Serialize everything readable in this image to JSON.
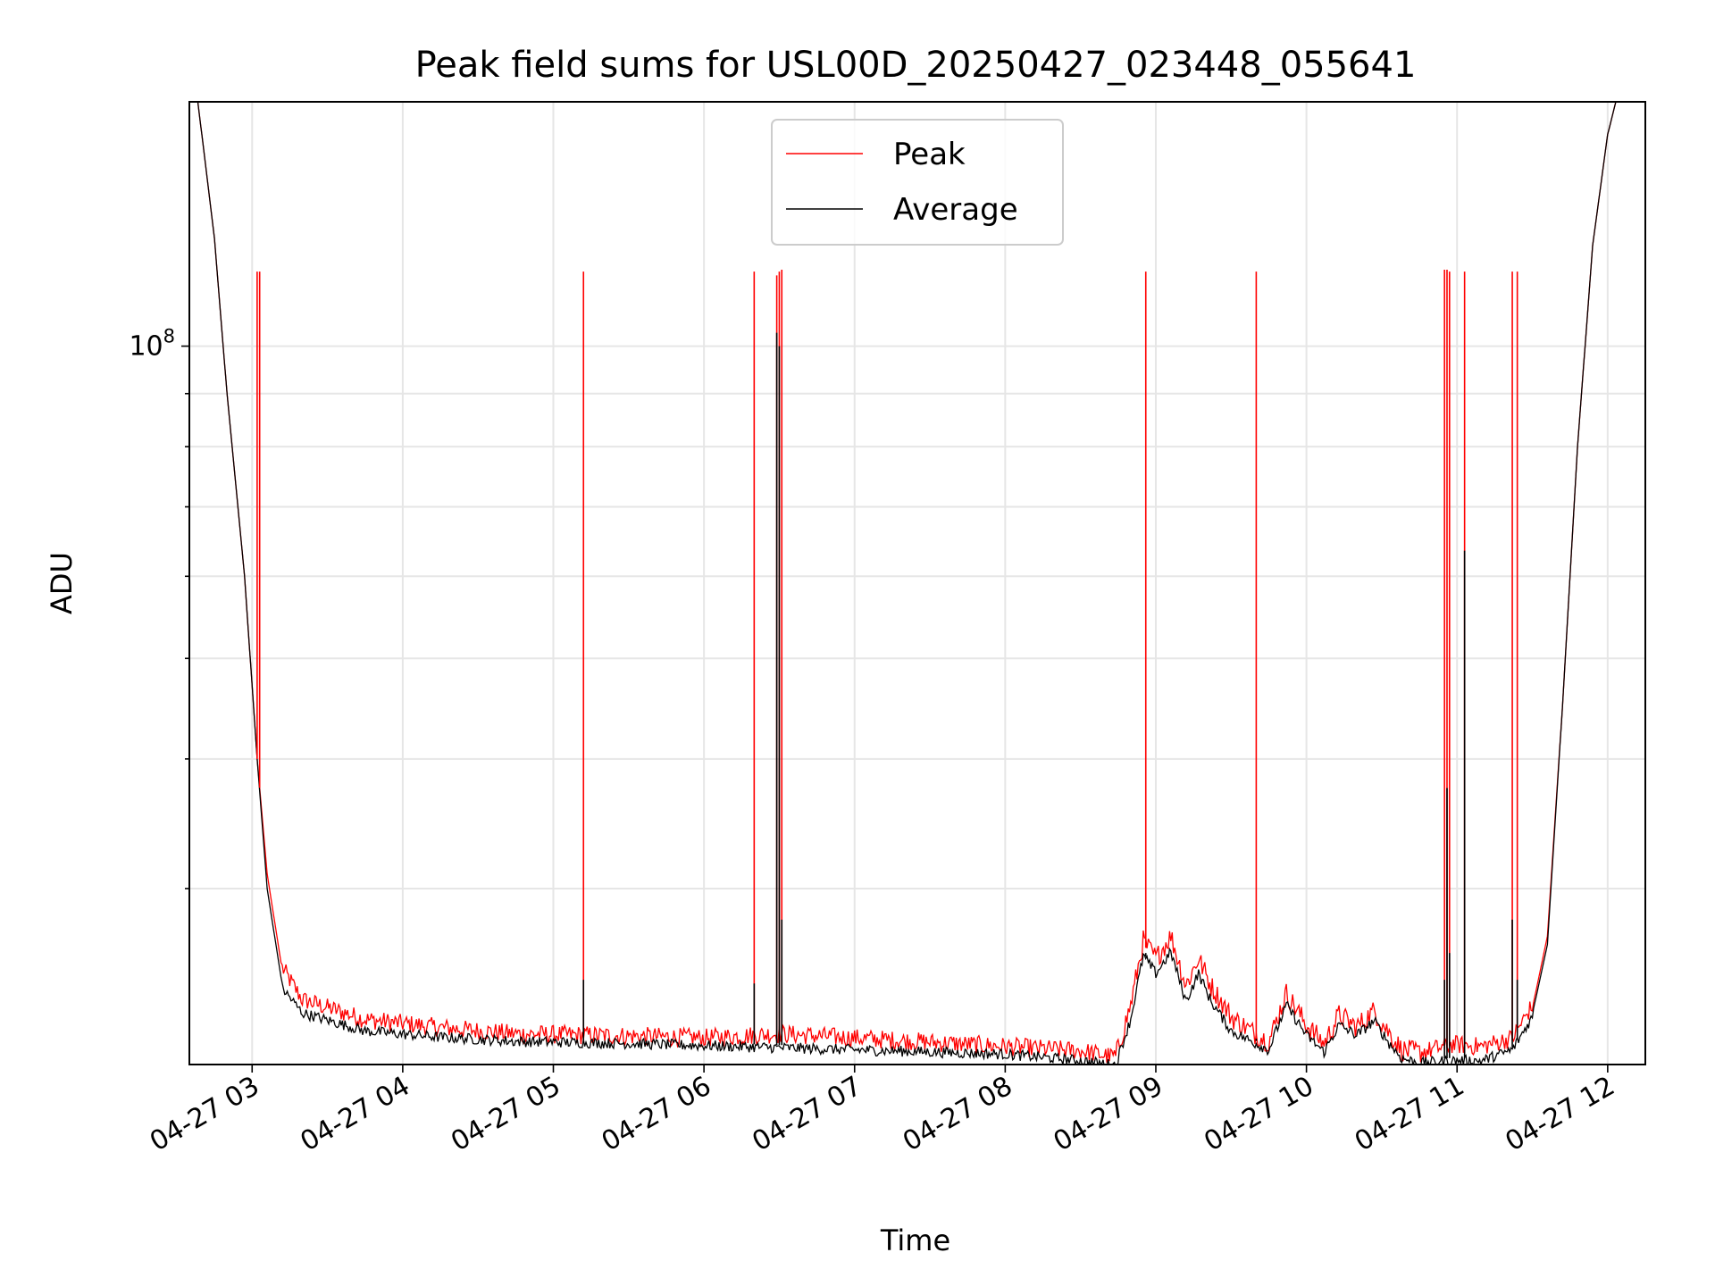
{
  "chart_data": {
    "type": "line",
    "title": "Peak field sums for USL00D_20250427_023448_055641",
    "xlabel": "Time",
    "ylabel": "ADU",
    "y_scale": "log",
    "y_major_tick_labels": [
      {
        "value": 100000000,
        "base": "10",
        "exp": "8"
      }
    ],
    "x_ticks": [
      {
        "t": "2025-04-27T03:00",
        "label": "04-27 03"
      },
      {
        "t": "2025-04-27T04:00",
        "label": "04-27 04"
      },
      {
        "t": "2025-04-27T05:00",
        "label": "04-27 05"
      },
      {
        "t": "2025-04-27T06:00",
        "label": "04-27 06"
      },
      {
        "t": "2025-04-27T07:00",
        "label": "04-27 07"
      },
      {
        "t": "2025-04-27T08:00",
        "label": "04-27 08"
      },
      {
        "t": "2025-04-27T09:00",
        "label": "04-27 09"
      },
      {
        "t": "2025-04-27T10:00",
        "label": "04-27 10"
      },
      {
        "t": "2025-04-27T11:00",
        "label": "04-27 11"
      },
      {
        "t": "2025-04-27T12:00",
        "label": "04-27 12"
      }
    ],
    "xlim": [
      "2025-04-27T02:35",
      "2025-04-27T12:15"
    ],
    "ylim": [
      20300000,
      172000000
    ],
    "grid": true,
    "legend_position": "upper center",
    "series": [
      {
        "name": "Peak",
        "color": "#ff0000",
        "points": [
          [
            "2025-04-27T02:38",
            175000000
          ],
          [
            "2025-04-27T02:45",
            127000000
          ],
          [
            "2025-04-27T02:50",
            90000000
          ],
          [
            "2025-04-27T02:57",
            60000000
          ],
          [
            "2025-04-27T03:02",
            40000000
          ],
          [
            "2025-04-27T03:06",
            31000000
          ],
          [
            "2025-04-27T03:12",
            25000000
          ],
          [
            "2025-04-27T03:20",
            23300000
          ],
          [
            "2025-04-27T03:45",
            22300000
          ],
          [
            "2025-04-27T04:15",
            21900000
          ],
          [
            "2025-04-27T04:45",
            21600000
          ],
          [
            "2025-04-27T05:30",
            21500000
          ],
          [
            "2025-04-27T06:00",
            21400000
          ],
          [
            "2025-04-27T06:30",
            21600000
          ],
          [
            "2025-04-27T07:00",
            21400000
          ],
          [
            "2025-04-27T07:30",
            21200000
          ],
          [
            "2025-04-27T08:00",
            21000000
          ],
          [
            "2025-04-27T08:30",
            20800000
          ],
          [
            "2025-04-27T08:44",
            20500000
          ],
          [
            "2025-04-27T08:50",
            23000000
          ],
          [
            "2025-04-27T08:55",
            26500000
          ],
          [
            "2025-04-27T09:00",
            25500000
          ],
          [
            "2025-04-27T09:06",
            26800000
          ],
          [
            "2025-04-27T09:12",
            24000000
          ],
          [
            "2025-04-27T09:17",
            25500000
          ],
          [
            "2025-04-27T09:22",
            24000000
          ],
          [
            "2025-04-27T09:30",
            22400000
          ],
          [
            "2025-04-27T09:38",
            21700000
          ],
          [
            "2025-04-27T09:45",
            21200000
          ],
          [
            "2025-04-27T09:52",
            23600000
          ],
          [
            "2025-04-27T10:00",
            22000000
          ],
          [
            "2025-04-27T10:07",
            21100000
          ],
          [
            "2025-04-27T10:13",
            22500000
          ],
          [
            "2025-04-27T10:20",
            21900000
          ],
          [
            "2025-04-27T10:27",
            22700000
          ],
          [
            "2025-04-27T10:33",
            21600000
          ],
          [
            "2025-04-27T10:38",
            20800000
          ],
          [
            "2025-04-27T10:45",
            20700000
          ],
          [
            "2025-04-27T10:58",
            21100000
          ],
          [
            "2025-04-27T11:10",
            21000000
          ],
          [
            "2025-04-27T11:22",
            21400000
          ],
          [
            "2025-04-27T11:30",
            23000000
          ],
          [
            "2025-04-27T11:36",
            27000000
          ],
          [
            "2025-04-27T11:42",
            45000000
          ],
          [
            "2025-04-27T11:48",
            80000000
          ],
          [
            "2025-04-27T11:54",
            125000000
          ],
          [
            "2025-04-27T12:00",
            160000000
          ],
          [
            "2025-04-27T12:04",
            175000000
          ]
        ]
      },
      {
        "name": "Average",
        "color": "#000000",
        "points": [
          [
            "2025-04-27T02:38",
            175000000
          ],
          [
            "2025-04-27T02:45",
            127000000
          ],
          [
            "2025-04-27T02:50",
            90000000
          ],
          [
            "2025-04-27T02:57",
            60000000
          ],
          [
            "2025-04-27T03:02",
            40000000
          ],
          [
            "2025-04-27T03:06",
            30000000
          ],
          [
            "2025-04-27T03:12",
            24200000
          ],
          [
            "2025-04-27T03:20",
            22900000
          ],
          [
            "2025-04-27T03:45",
            22000000
          ],
          [
            "2025-04-27T04:15",
            21700000
          ],
          [
            "2025-04-27T04:45",
            21500000
          ],
          [
            "2025-04-27T05:30",
            21400000
          ],
          [
            "2025-04-27T06:00",
            21300000
          ],
          [
            "2025-04-27T06:30",
            21200000
          ],
          [
            "2025-04-27T07:00",
            21100000
          ],
          [
            "2025-04-27T07:30",
            21000000
          ],
          [
            "2025-04-27T08:00",
            20900000
          ],
          [
            "2025-04-27T08:30",
            20600000
          ],
          [
            "2025-04-27T08:44",
            20400000
          ],
          [
            "2025-04-27T08:50",
            22600000
          ],
          [
            "2025-04-27T08:55",
            26000000
          ],
          [
            "2025-04-27T09:00",
            25000000
          ],
          [
            "2025-04-27T09:06",
            26200000
          ],
          [
            "2025-04-27T09:12",
            23500000
          ],
          [
            "2025-04-27T09:17",
            25000000
          ],
          [
            "2025-04-27T09:22",
            23500000
          ],
          [
            "2025-04-27T09:30",
            22000000
          ],
          [
            "2025-04-27T09:38",
            21500000
          ],
          [
            "2025-04-27T09:45",
            21100000
          ],
          [
            "2025-04-27T09:52",
            23300000
          ],
          [
            "2025-04-27T10:00",
            21800000
          ],
          [
            "2025-04-27T10:07",
            21000000
          ],
          [
            "2025-04-27T10:13",
            22300000
          ],
          [
            "2025-04-27T10:20",
            21800000
          ],
          [
            "2025-04-27T10:27",
            22500000
          ],
          [
            "2025-04-27T10:33",
            21400000
          ],
          [
            "2025-04-27T10:38",
            20700000
          ],
          [
            "2025-04-27T10:45",
            20500000
          ],
          [
            "2025-04-27T10:58",
            20600000
          ],
          [
            "2025-04-27T11:10",
            20600000
          ],
          [
            "2025-04-27T11:22",
            21100000
          ],
          [
            "2025-04-27T11:30",
            22700000
          ],
          [
            "2025-04-27T11:36",
            26500000
          ],
          [
            "2025-04-27T11:42",
            45000000
          ],
          [
            "2025-04-27T11:48",
            80000000
          ],
          [
            "2025-04-27T11:54",
            125000000
          ],
          [
            "2025-04-27T12:00",
            160000000
          ],
          [
            "2025-04-27T12:04",
            175000000
          ]
        ]
      }
    ],
    "peak_spikes": [
      {
        "t": "2025-04-27T03:02",
        "peak": 118000000
      },
      {
        "t": "2025-04-27T03:03",
        "peak": 118000000
      },
      {
        "t": "2025-04-27T05:12",
        "peak": 118000000,
        "average": 24500000
      },
      {
        "t": "2025-04-27T06:20",
        "peak": 118000000,
        "average": 24300000
      },
      {
        "t": "2025-04-27T06:29",
        "peak": 117000000,
        "average": 103000000
      },
      {
        "t": "2025-04-27T06:30",
        "peak": 118000000,
        "average": 100000000
      },
      {
        "t": "2025-04-27T06:31",
        "peak": 118500000,
        "average": 28000000
      },
      {
        "t": "2025-04-27T08:56",
        "peak": 118000000,
        "average": 26000000
      },
      {
        "t": "2025-04-27T09:40",
        "peak": 118000000,
        "average": 21500000
      },
      {
        "t": "2025-04-27T10:55",
        "peak": 118500000,
        "average": 24500000
      },
      {
        "t": "2025-04-27T10:56",
        "peak": 118500000,
        "average": 37500000
      },
      {
        "t": "2025-04-27T10:57",
        "peak": 118000000,
        "average": 26000000
      },
      {
        "t": "2025-04-27T11:03",
        "peak": 118000000,
        "average": 63500000
      },
      {
        "t": "2025-04-27T11:22",
        "peak": 118000000,
        "average": 28000000
      },
      {
        "t": "2025-04-27T11:24",
        "peak": 118000000,
        "average": 24500000
      }
    ]
  }
}
